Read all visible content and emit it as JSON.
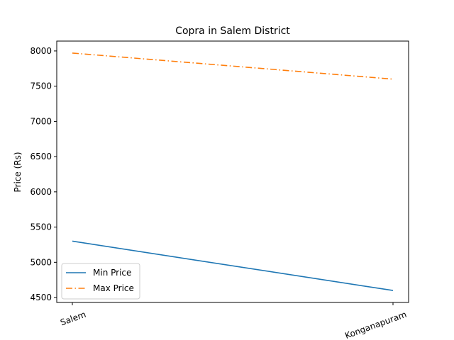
{
  "chart_data": {
    "type": "line",
    "title": "Copra in Salem District",
    "xlabel": "",
    "ylabel": "Price (Rs)",
    "categories": [
      "Salem",
      "Konganapuram"
    ],
    "series": [
      {
        "name": "Min Price",
        "values": [
          5300,
          4600
        ],
        "color": "#1f77b4",
        "linestyle": "solid"
      },
      {
        "name": "Max Price",
        "values": [
          7970,
          7600
        ],
        "color": "#ff7f0e",
        "linestyle": "dashdot"
      }
    ],
    "ylim": [
      4430,
      8140
    ],
    "yticks": [
      4500,
      5000,
      5500,
      6000,
      6500,
      7000,
      7500,
      8000
    ],
    "legend_position": "lower-left",
    "grid": false
  }
}
